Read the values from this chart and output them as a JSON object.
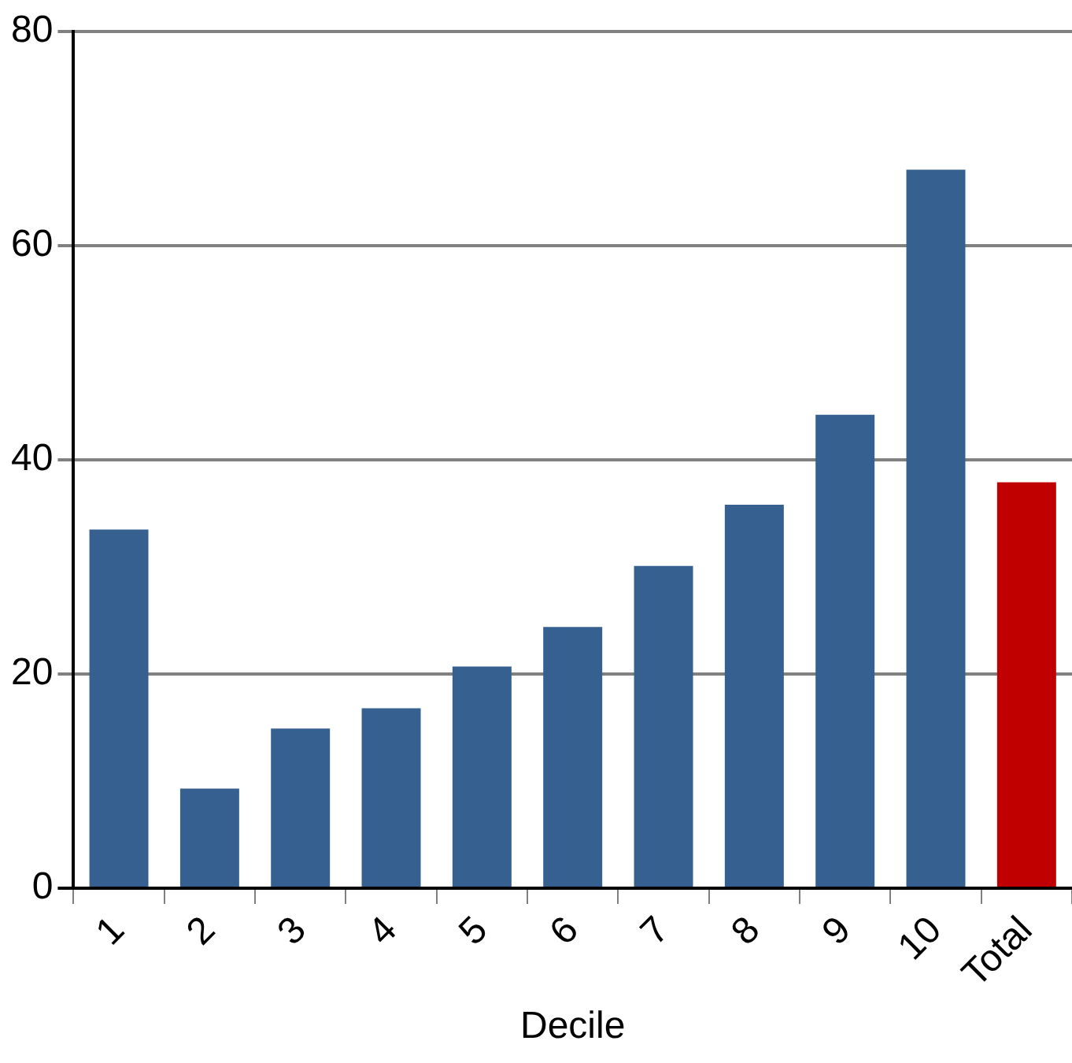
{
  "chart_data": {
    "type": "bar",
    "xlabel": "Decile",
    "categories": [
      "1",
      "2",
      "3",
      "4",
      "5",
      "6",
      "7",
      "8",
      "9",
      "10",
      "Total"
    ],
    "values": [
      33.5,
      9.3,
      14.9,
      16.8,
      20.7,
      24.4,
      30.1,
      35.8,
      44.2,
      67.1,
      37.9
    ],
    "colors": [
      "#35608f",
      "#35608f",
      "#35608f",
      "#35608f",
      "#35608f",
      "#35608f",
      "#35608f",
      "#35608f",
      "#35608f",
      "#35608f",
      "#c00000"
    ],
    "ylim": [
      0,
      80
    ],
    "yticks": [
      0,
      20,
      40,
      60,
      80
    ],
    "grid": "y",
    "legend": false
  }
}
